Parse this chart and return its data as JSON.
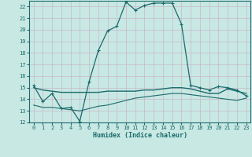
{
  "xlabel": "Humidex (Indice chaleur)",
  "bg_color": "#c8e8e4",
  "line_color": "#1a6b6b",
  "grid_color": "#c8b8c8",
  "xlim": [
    -0.5,
    23.5
  ],
  "ylim": [
    12,
    22.5
  ],
  "yticks": [
    12,
    13,
    14,
    15,
    16,
    17,
    18,
    19,
    20,
    21,
    22
  ],
  "xticks": [
    0,
    1,
    2,
    3,
    4,
    5,
    6,
    7,
    8,
    9,
    10,
    11,
    12,
    13,
    14,
    15,
    16,
    17,
    18,
    19,
    20,
    21,
    22,
    23
  ],
  "curve1_x": [
    0,
    1,
    2,
    3,
    4,
    5,
    6,
    7,
    8,
    9,
    10,
    11,
    12,
    13,
    14,
    15,
    16,
    17,
    18,
    19,
    20,
    21,
    22,
    23
  ],
  "curve1_y": [
    15.2,
    13.8,
    14.5,
    13.2,
    13.3,
    12.1,
    15.5,
    18.2,
    19.9,
    20.3,
    22.4,
    21.7,
    22.1,
    22.3,
    22.3,
    22.3,
    20.5,
    15.2,
    15.0,
    14.8,
    15.1,
    15.0,
    14.8,
    14.3
  ],
  "curve2_x": [
    0,
    1,
    2,
    3,
    4,
    5,
    6,
    7,
    8,
    9,
    10,
    11,
    12,
    13,
    14,
    15,
    16,
    17,
    18,
    19,
    20,
    21,
    22,
    23
  ],
  "curve2_y": [
    15.0,
    14.8,
    14.7,
    14.6,
    14.6,
    14.6,
    14.6,
    14.6,
    14.7,
    14.7,
    14.7,
    14.7,
    14.8,
    14.8,
    14.9,
    15.0,
    15.0,
    14.9,
    14.7,
    14.5,
    14.5,
    14.9,
    14.7,
    14.5
  ],
  "curve3_x": [
    0,
    1,
    2,
    3,
    4,
    5,
    6,
    7,
    8,
    9,
    10,
    11,
    12,
    13,
    14,
    15,
    16,
    17,
    18,
    19,
    20,
    21,
    22,
    23
  ],
  "curve3_y": [
    13.5,
    13.3,
    13.3,
    13.2,
    13.1,
    13.0,
    13.2,
    13.4,
    13.5,
    13.7,
    13.9,
    14.1,
    14.2,
    14.3,
    14.4,
    14.5,
    14.5,
    14.4,
    14.3,
    14.2,
    14.1,
    14.0,
    13.9,
    14.1
  ]
}
